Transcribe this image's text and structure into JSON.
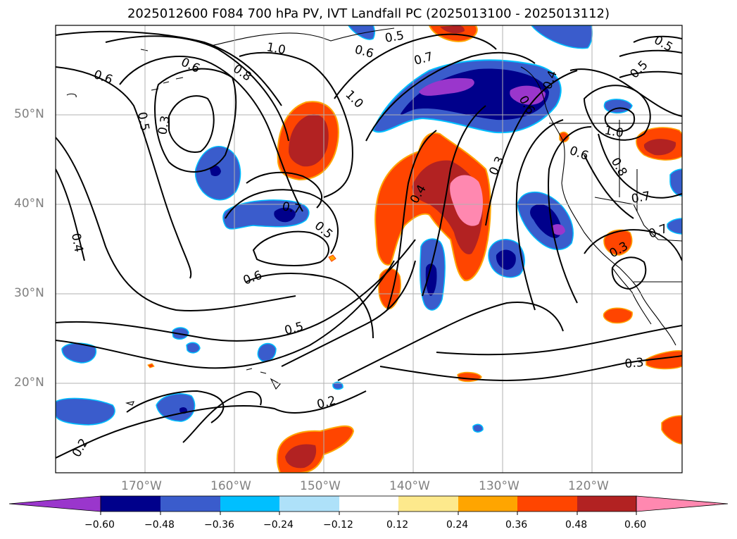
{
  "title": "2025012600 F084 700 hPa PV, IVT Landfall PC (2025013100 - 2025013112)",
  "lat_labels": [
    "50°N",
    "40°N",
    "30°N",
    "20°N"
  ],
  "lon_labels": [
    "170°W",
    "160°W",
    "150°W",
    "140°W",
    "130°W",
    "120°W"
  ],
  "contour_labels": [
    "1.0",
    "0.6",
    "0.6",
    "0.8",
    "0.5",
    "0.3",
    "0.6",
    "0.5",
    "0.7",
    "1.0",
    "0.6",
    "0.5",
    "0.7",
    "0.5",
    "0.4",
    "0.4",
    "0.3",
    "0.7",
    "0.5",
    "0.6",
    "0.5",
    "0.2",
    "0.2",
    "0.3",
    "1.0",
    "0.8",
    "0.6",
    "0.7",
    "0.4",
    "0.3"
  ],
  "colorbar": {
    "ticks": [
      "−0.60",
      "−0.48",
      "−0.36",
      "−0.24",
      "−0.12",
      "0.12",
      "0.24",
      "0.36",
      "0.48",
      "0.60"
    ],
    "colors": [
      "#9a36cc",
      "#00008b",
      "#3a5ccc",
      "#00bfff",
      "#aee1f9",
      "#ffffff",
      "#fde98c",
      "#ffa500",
      "#ff4500",
      "#b22222",
      "#ff88b0"
    ]
  }
}
